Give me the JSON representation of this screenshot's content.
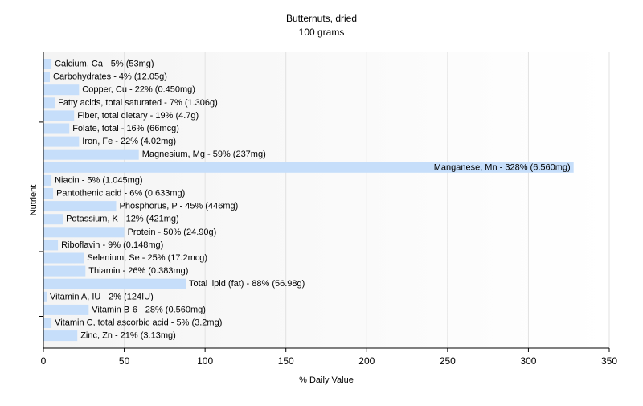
{
  "chart_data": {
    "type": "bar",
    "orientation": "horizontal",
    "title": "Butternuts, dried",
    "subtitle": "100 grams",
    "xlabel": "% Daily Value",
    "ylabel": "Nutrient",
    "xlim": [
      0,
      350
    ],
    "xticks": [
      0,
      50,
      100,
      150,
      200,
      250,
      300,
      350
    ],
    "grid": true,
    "bar_color": "#c6defa",
    "categories": [
      "Calcium, Ca",
      "Carbohydrates",
      "Copper, Cu",
      "Fatty acids, total saturated",
      "Fiber, total dietary",
      "Folate, total",
      "Iron, Fe",
      "Magnesium, Mg",
      "Manganese, Mn",
      "Niacin",
      "Pantothenic acid",
      "Phosphorus, P",
      "Potassium, K",
      "Protein",
      "Riboflavin",
      "Selenium, Se",
      "Thiamin",
      "Total lipid (fat)",
      "Vitamin A, IU",
      "Vitamin B-6",
      "Vitamin C, total ascorbic acid",
      "Zinc, Zn"
    ],
    "values": [
      5,
      4,
      22,
      7,
      19,
      16,
      22,
      59,
      328,
      5,
      6,
      45,
      12,
      50,
      9,
      25,
      26,
      88,
      2,
      28,
      5,
      21
    ],
    "labels": [
      "Calcium, Ca - 5% (53mg)",
      "Carbohydrates - 4% (12.05g)",
      "Copper, Cu - 22% (0.450mg)",
      "Fatty acids, total saturated - 7% (1.306g)",
      "Fiber, total dietary - 19% (4.7g)",
      "Folate, total - 16% (66mcg)",
      "Iron, Fe - 22% (4.02mg)",
      "Magnesium, Mg - 59% (237mg)",
      "Manganese, Mn - 328% (6.560mg)",
      "Niacin - 5% (1.045mg)",
      "Pantothenic acid - 6% (0.633mg)",
      "Phosphorus, P - 45% (446mg)",
      "Potassium, K - 12% (421mg)",
      "Protein - 50% (24.90g)",
      "Riboflavin - 9% (0.148mg)",
      "Selenium, Se - 25% (17.2mcg)",
      "Thiamin - 26% (0.383mg)",
      "Total lipid (fat) - 88% (56.98g)",
      "Vitamin A, IU - 2% (124IU)",
      "Vitamin B-6 - 28% (0.560mg)",
      "Vitamin C, total ascorbic acid - 5% (3.2mg)",
      "Zinc, Zn - 21% (3.13mg)"
    ]
  }
}
